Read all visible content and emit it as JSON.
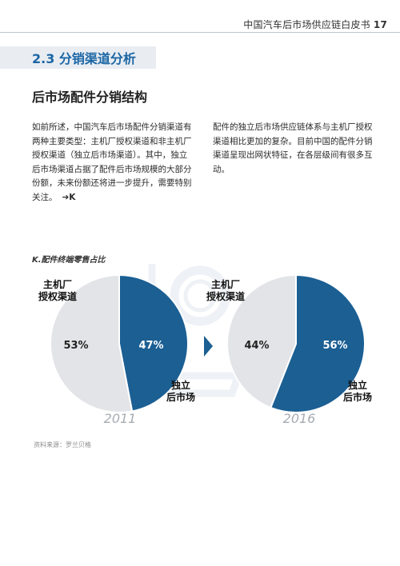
{
  "header": {
    "title": "中国汽车后市场供应链白皮书",
    "page_number": "17"
  },
  "section": {
    "title": "2.3  分销渠道分析"
  },
  "subheading": "后市场配件分销结构",
  "body": {
    "left_lines": [
      "如前所述，中国汽车后市场配件分销渠道有",
      "两种主要类型：主机厂授权渠道和非主机厂",
      "授权渠道（独立后市场渠道）。其中，独立",
      "后市场渠道占据了配件后市场规模的大部分",
      "份额，未来份额还将进一步提升，需要特别",
      "关注。"
    ],
    "figure_ref": "➔K",
    "right_lines": [
      "配件的独立后市场供应链体系与主机厂授权",
      "渠道相比更加的复杂。目前中国的配件分销",
      "渠道呈现出网状特征，在各层级间有很多互",
      "动。"
    ]
  },
  "chart_title": "K.配件终端零售占比",
  "colors": {
    "oem": "#e3e4e8",
    "independent": "#1b5f93",
    "accent": "#1b66a5",
    "arrow": "#1b5f93",
    "watermark": "#eef1f5"
  },
  "chart_data": {
    "type": "pie",
    "title": "K.配件终端零售占比",
    "categories": [
      "主机厂授权渠道",
      "独立后市场"
    ],
    "charts": [
      {
        "year": "2011",
        "labels": [
          "53%",
          "47%"
        ],
        "values": [
          53,
          47
        ]
      },
      {
        "year": "2016",
        "labels": [
          "44%",
          "56%"
        ],
        "values": [
          44,
          56
        ]
      }
    ],
    "label_lines": {
      "oem": [
        "主机厂",
        "授权渠道"
      ],
      "independent": [
        "独立",
        "后市场"
      ]
    }
  },
  "source": "资料来源：罗兰贝格",
  "icons": {
    "watermark": "magnifier-cart-icon",
    "between_arrow": "triangle-right-icon"
  }
}
